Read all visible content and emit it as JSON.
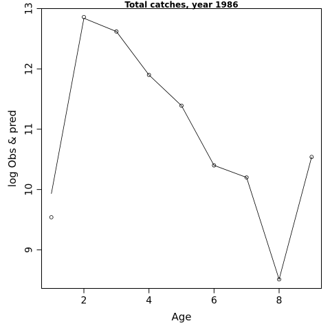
{
  "chart_data": {
    "type": "line",
    "title": "Total catches, year 1986",
    "xlabel": "Age",
    "ylabel": "log Obs & pred",
    "xlim": [
      0.7,
      9.3
    ],
    "ylim": [
      8.36,
      13.0
    ],
    "x_ticks": [
      2,
      4,
      6,
      8
    ],
    "y_ticks": [
      9,
      10,
      11,
      12,
      13
    ],
    "grid": false,
    "series": [
      {
        "style": "points",
        "x": [
          1,
          2,
          3,
          4,
          5,
          6,
          7,
          8,
          9
        ],
        "values": [
          9.54,
          12.86,
          12.62,
          11.9,
          11.39,
          10.4,
          10.2,
          8.51,
          10.54
        ]
      },
      {
        "style": "line",
        "x": [
          1,
          2,
          3,
          4,
          5,
          6,
          7,
          8,
          9
        ],
        "values": [
          9.93,
          12.84,
          12.62,
          11.9,
          11.39,
          10.4,
          10.2,
          8.51,
          10.54
        ]
      }
    ]
  }
}
